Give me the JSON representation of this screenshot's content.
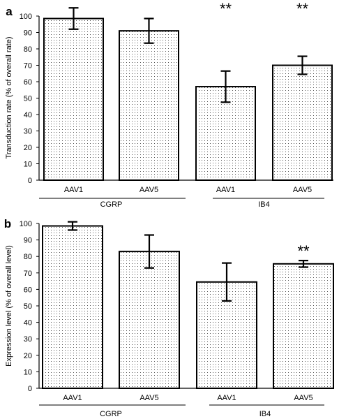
{
  "chart_data": [
    {
      "panel_label": "a",
      "type": "bar",
      "ylabel": "Transduction rate (% of overall rate)",
      "ylim": [
        0,
        100
      ],
      "yticks": [
        0,
        10,
        20,
        30,
        40,
        50,
        60,
        70,
        80,
        90,
        100
      ],
      "categories": [
        "AAV1",
        "AAV5",
        "AAV1",
        "AAV5"
      ],
      "groups": [
        {
          "label": "CGRP",
          "indices": [
            0,
            1
          ]
        },
        {
          "label": "IB4",
          "indices": [
            2,
            3
          ]
        }
      ],
      "values": [
        98.5,
        91,
        57,
        70
      ],
      "error": [
        6.5,
        7.5,
        9.5,
        5.5
      ],
      "significance": [
        "",
        "",
        "**",
        "**"
      ]
    },
    {
      "panel_label": "b",
      "type": "bar",
      "ylabel": "Expression level (% of overall level)",
      "ylim": [
        0,
        100
      ],
      "yticks": [
        0,
        10,
        20,
        30,
        40,
        50,
        60,
        70,
        80,
        90,
        100
      ],
      "categories": [
        "AAV1",
        "AAV5",
        "AAV1",
        "AAV5"
      ],
      "groups": [
        {
          "label": "CGRP",
          "indices": [
            0,
            1
          ]
        },
        {
          "label": "IB4",
          "indices": [
            2,
            3
          ]
        }
      ],
      "values": [
        98.5,
        83,
        64.5,
        75.5
      ],
      "error": [
        2.5,
        10,
        11.5,
        2
      ],
      "significance": [
        "",
        "",
        "",
        "**"
      ]
    }
  ]
}
